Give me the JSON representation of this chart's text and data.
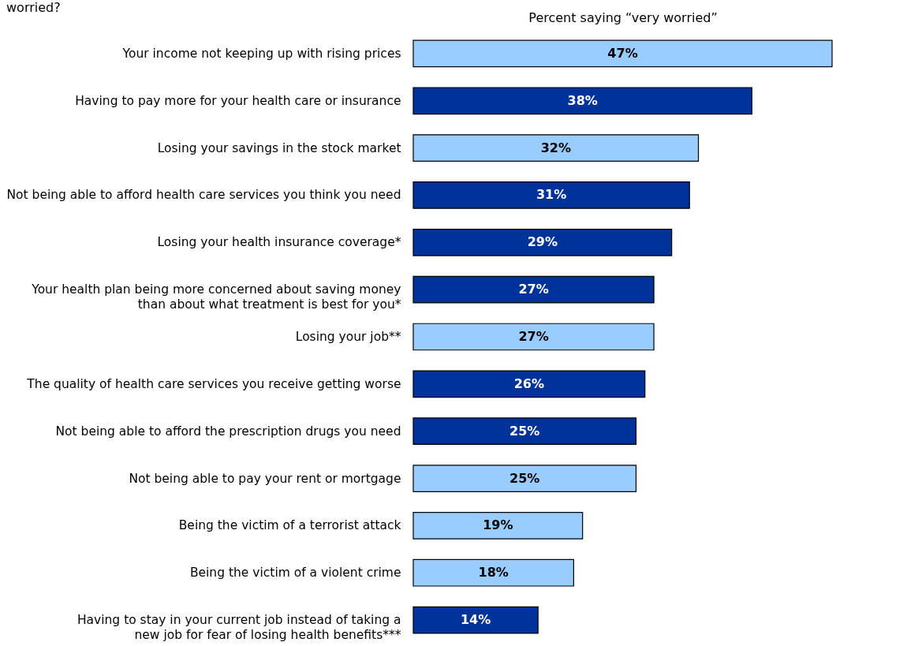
{
  "chart_data": {
    "type": "bar",
    "orientation": "horizontal",
    "title": "worried?",
    "xlabel": "Percent saying “very worried”",
    "categories": [
      "Your income not keeping up with rising prices",
      "Having to pay more for your health care or insurance",
      "Losing your savings in the stock market",
      "Not being able to afford health care services you think you need",
      "Losing your health insurance coverage*",
      "Your health plan being more concerned about saving money than about what treatment is best for you*",
      "Losing your job**",
      "The quality of health care services you receive getting worse",
      "Not being able to afford the prescription drugs you need",
      "Not being able to pay your rent or mortgage",
      "Being the victim of a terrorist attack",
      "Being the victim of a violent crime",
      "Having to stay in your current job instead of taking a new job for fear of losing health benefits***"
    ],
    "values": [
      47,
      38,
      32,
      31,
      29,
      27,
      27,
      26,
      25,
      25,
      19,
      18,
      14
    ],
    "value_labels": [
      "47%",
      "38%",
      "32%",
      "31%",
      "29%",
      "27%",
      "27%",
      "26%",
      "25%",
      "25%",
      "19%",
      "18%",
      "14%"
    ],
    "colors": [
      "#99ccff",
      "#003399",
      "#99ccff",
      "#003399",
      "#003399",
      "#003399",
      "#99ccff",
      "#003399",
      "#003399",
      "#99ccff",
      "#99ccff",
      "#99ccff",
      "#003399"
    ],
    "legend": false
  }
}
